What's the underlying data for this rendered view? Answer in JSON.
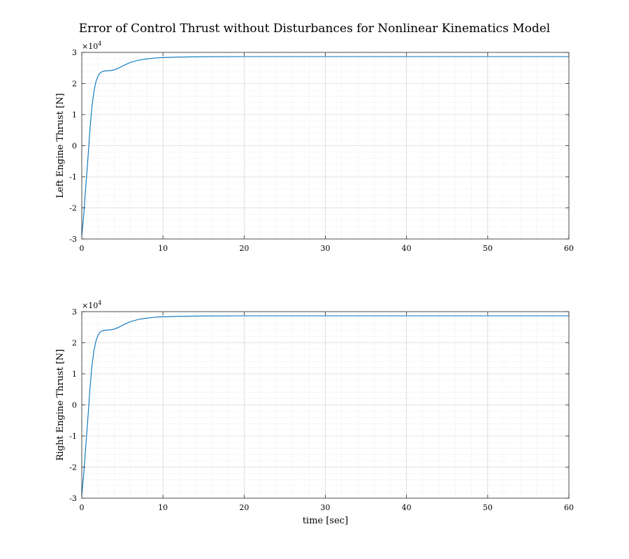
{
  "figure_title": "Error of Control Thrust without Disturbances for Nonlinear Kinematics Model",
  "chart_data": [
    {
      "type": "line",
      "title": "",
      "xlabel": "",
      "ylabel": "Left Engine Thrust  [N]",
      "xlim": [
        0,
        60
      ],
      "ylim": [
        -30000,
        30000
      ],
      "y_exponent_label": "×10",
      "y_exponent_power": "4",
      "x_ticks": [
        "0",
        "10",
        "20",
        "30",
        "40",
        "50",
        "60"
      ],
      "y_ticks": [
        "-3",
        "-2",
        "-1",
        "0",
        "1",
        "2",
        "3"
      ],
      "grid": "major+minor",
      "series": [
        {
          "color": "#0072bd",
          "x": [
            0,
            0.25,
            0.5,
            0.75,
            1.0,
            1.25,
            1.5,
            1.75,
            2.0,
            2.25,
            2.5,
            2.75,
            3.0,
            3.5,
            4.0,
            4.5,
            5.0,
            5.5,
            6.0,
            7.0,
            8.0,
            9.0,
            10.0,
            12.0,
            15.0,
            20.0,
            30.0,
            40.0,
            50.0,
            60.0
          ],
          "y": [
            -29000,
            -22000,
            -13000,
            -4500,
            5000,
            12500,
            17500,
            20600,
            22400,
            23400,
            23800,
            24000,
            24050,
            24150,
            24400,
            24900,
            25600,
            26200,
            26800,
            27500,
            27900,
            28200,
            28350,
            28500,
            28600,
            28650,
            28650,
            28650,
            28650,
            28650
          ]
        }
      ]
    },
    {
      "type": "line",
      "title": "",
      "xlabel": "time [sec]",
      "ylabel": "Right Engine Thrust  [N]",
      "xlim": [
        0,
        60
      ],
      "ylim": [
        -30000,
        30000
      ],
      "y_exponent_label": "×10",
      "y_exponent_power": "4",
      "x_ticks": [
        "0",
        "10",
        "20",
        "30",
        "40",
        "50",
        "60"
      ],
      "y_ticks": [
        "-3",
        "-2",
        "-1",
        "0",
        "1",
        "2",
        "3"
      ],
      "grid": "major+minor",
      "series": [
        {
          "color": "#0072bd",
          "x": [
            0,
            0.25,
            0.5,
            0.75,
            1.0,
            1.25,
            1.5,
            1.75,
            2.0,
            2.25,
            2.5,
            2.75,
            3.0,
            3.5,
            4.0,
            4.5,
            5.0,
            5.5,
            6.0,
            7.0,
            8.0,
            9.0,
            10.0,
            12.0,
            15.0,
            20.0,
            30.0,
            40.0,
            50.0,
            60.0
          ],
          "y": [
            -29000,
            -22000,
            -13000,
            -4500,
            5000,
            12500,
            17500,
            20600,
            22400,
            23400,
            23800,
            24000,
            24050,
            24150,
            24400,
            24900,
            25600,
            26200,
            26800,
            27500,
            27900,
            28200,
            28350,
            28500,
            28600,
            28650,
            28650,
            28650,
            28650,
            28650
          ]
        }
      ]
    }
  ]
}
